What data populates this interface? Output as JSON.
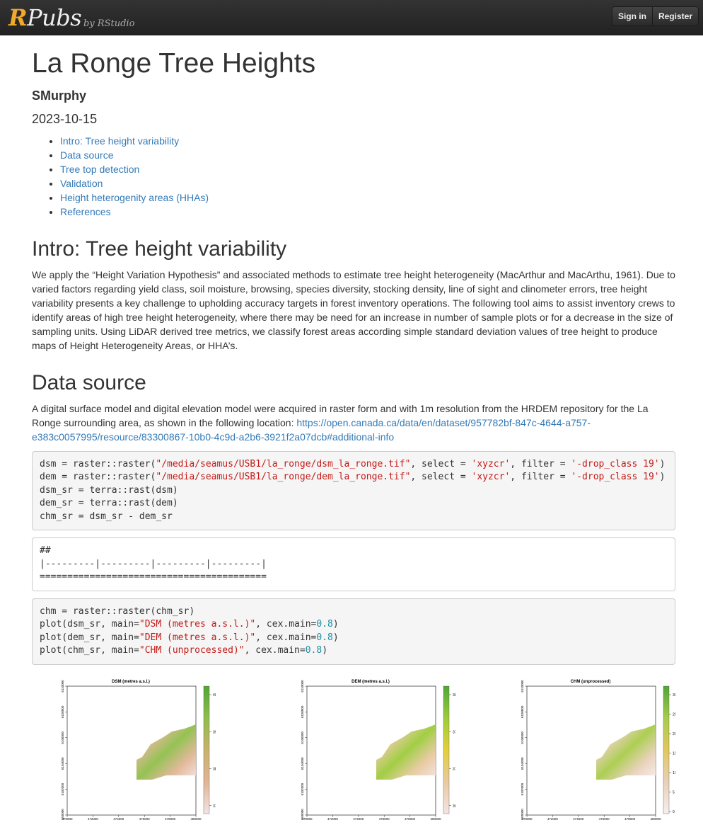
{
  "header": {
    "logo_r": "R",
    "logo_rest": "Pubs",
    "byline": "by RStudio",
    "sign_in": "Sign in",
    "register": "Register"
  },
  "doc": {
    "title": "La Ronge Tree Heights",
    "author": "SMurphy",
    "date": "2023-10-15",
    "toc": [
      "Intro: Tree height variability",
      "Data source",
      "Tree top detection",
      "Validation",
      "Height heterogenity areas (HHAs)",
      "References"
    ]
  },
  "intro": {
    "heading": "Intro: Tree height variability",
    "paragraph": "We apply the “Height Variation Hypothesis” and associated methods to estimate tree height heterogeneity (MacArthur and MacArthu, 1961). Due to varied factors regarding yield class, soil moisture, browsing, species diversity, stocking density, line of sight and clinometer errors, tree height variability presents a key challenge to upholding accuracy targets in forest inventory operations. The following tool aims to assist inventory crews to identify areas of high tree height heterogeneity, where there may be need for an increase in number of sample plots or for a decrease in the size of sampling units. Using LiDAR derived tree metrics, we classify forest areas according simple standard deviation values of tree height to produce maps of Height Heterogeneity Areas, or HHA’s."
  },
  "data_source": {
    "heading": "Data source",
    "paragraph": "A digital surface model and digital elevation model were acquired in raster form and with 1m resolution from the HRDEM repository for the La Ronge surrounding area, as shown in the following location:",
    "link": "https://open.canada.ca/data/en/dataset/957782bf-847c-4644-a757-e383c0057995/resource/83300867-10b0-4c9d-a2b6-3921f2a07dcb#additional-info"
  },
  "code1": [
    [
      "dsm = raster::raster(",
      "\"/media/seamus/USB1/la_ronge/dsm_la_ronge.tif\"",
      ", select = ",
      "'xyzcr'",
      ", filter = ",
      "'-drop_class 19'",
      ")"
    ],
    [
      "dem = raster::raster(",
      "\"/media/seamus/USB1/la_ronge/dem_la_ronge.tif\"",
      ", select = ",
      "'xyzcr'",
      ", filter = ",
      "'-drop_class 19'",
      ")"
    ],
    [
      "dsm_sr = terra::rast(dsm)"
    ],
    [
      "dem_sr = terra::rast(dem)"
    ],
    [
      "chm_sr = dsm_sr - dem_sr"
    ]
  ],
  "output1": [
    "##",
    "|---------|---------|---------|---------|",
    "========================================="
  ],
  "code2": [
    [
      "chm = raster::raster(chm_sr)"
    ],
    [
      "plot(dsm_sr, main=",
      "\"DSM (metres a.s.l.)\"",
      ", cex.main=",
      "0.8",
      ")"
    ],
    [
      "plot(dem_sr, main=",
      "\"DEM (metres a.s.l.)\"",
      ", cex.main=",
      "0.8",
      ")"
    ],
    [
      "plot(chm_sr, main=",
      "\"CHM (unprocessed)\"",
      ", cex.main=",
      "0.8",
      ")"
    ]
  ],
  "plots": [
    {
      "title": "DSM (metres a.s.l.)",
      "legend": [
        "400",
        "390",
        "380",
        "370"
      ],
      "colors": [
        "#f4e4e4",
        "#e0b594",
        "#c9b26a",
        "#8fbf4a",
        "#4fa636"
      ]
    },
    {
      "title": "DEM (metres a.s.l.)",
      "legend": [
        "380",
        "375",
        "370",
        "365"
      ],
      "colors": [
        "#f4e4e4",
        "#e8c9a0",
        "#e3cf3a",
        "#9ccc3a",
        "#4fa636"
      ]
    },
    {
      "title": "CHM (unprocessed)",
      "legend": [
        "30",
        "25",
        "20",
        "15",
        "10",
        "5",
        "0"
      ],
      "colors": [
        "#f7eeee",
        "#e8d0b8",
        "#e2c85a",
        "#a8cc4a",
        "#4fa636"
      ]
    }
  ],
  "plot_axes": {
    "x_ticks": [
      "470000",
      "472000",
      "474000",
      "476000",
      "478000",
      "480000"
    ],
    "y_ticks": [
      "6110000",
      "6108000",
      "6106000",
      "6104000",
      "6102000",
      "6100000"
    ]
  }
}
